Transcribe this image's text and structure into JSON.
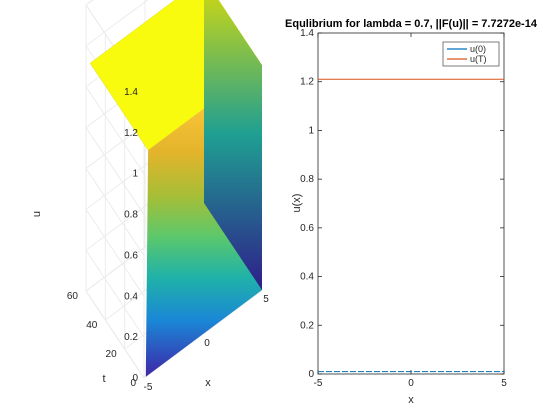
{
  "chart_data": [
    {
      "type": "surface",
      "title": "",
      "xlabel": "x",
      "ylabel": "t",
      "zlabel": "u",
      "xlim": [
        -5,
        5
      ],
      "ylim": [
        0,
        60
      ],
      "zlim": [
        0,
        1.4
      ],
      "xticks": [
        "-5",
        "0",
        "5"
      ],
      "yticks": [
        "0",
        "20",
        "40",
        "60"
      ],
      "zticks": [
        "0",
        "0.2",
        "0.4",
        "0.6",
        "0.8",
        "1",
        "1.2",
        "1.4"
      ],
      "surface": {
        "x_step_at": -5,
        "value_low": 0,
        "value_high": 1.1,
        "description_of_shape": "u is ~1.1 for x > -5 at all t; transition to 0 only on left edge"
      },
      "colormap": "parula",
      "colors": {
        "high": "#f9fb0e",
        "mid": "#27b0a6",
        "low": "#3e26a8"
      },
      "grid": true
    },
    {
      "type": "line",
      "title": "Equlibrium for lambda = 0.7, ||F(u)|| = 7.7272e-14",
      "xlabel": "x",
      "ylabel": "u(x)",
      "xlim": [
        -5,
        5
      ],
      "ylim": [
        0,
        1.4
      ],
      "xticks": [
        "-5",
        "0",
        "5"
      ],
      "yticks": [
        "0",
        "0.2",
        "0.4",
        "0.6",
        "0.8",
        "1",
        "1.2",
        "1.4"
      ],
      "legend_position": "top-right",
      "series": [
        {
          "name": "u(0)",
          "color": "#0072bd",
          "x": [
            -5,
            -2.5,
            0,
            2.5,
            5
          ],
          "y": [
            0.01,
            0.01,
            0.01,
            0.01,
            0.01
          ]
        },
        {
          "name": "u(T)",
          "color": "#d95319",
          "x": [
            -5,
            -2.5,
            0,
            2.5,
            5
          ],
          "y": [
            1.21,
            1.21,
            1.21,
            1.21,
            1.21
          ]
        }
      ]
    }
  ]
}
